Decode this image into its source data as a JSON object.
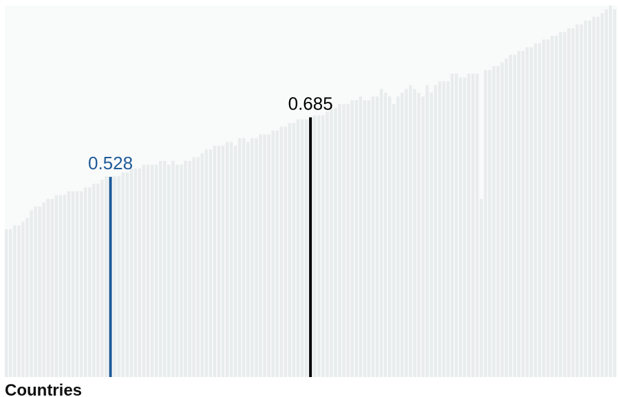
{
  "chart_data": {
    "type": "bar",
    "xlabel": "Countries",
    "ylim": [
      0,
      0.98
    ],
    "highlights": [
      {
        "index": 25,
        "value": 0.528,
        "label": "0.528",
        "color": "#1f5b99"
      },
      {
        "index": 73,
        "value": 0.685,
        "label": "0.685",
        "color": "#000000"
      }
    ],
    "values": [
      0.39,
      0.39,
      0.4,
      0.4,
      0.41,
      0.42,
      0.44,
      0.45,
      0.45,
      0.46,
      0.47,
      0.47,
      0.48,
      0.48,
      0.48,
      0.49,
      0.49,
      0.49,
      0.49,
      0.5,
      0.5,
      0.51,
      0.51,
      0.52,
      0.53,
      0.528,
      0.53,
      0.53,
      0.54,
      0.54,
      0.55,
      0.55,
      0.55,
      0.56,
      0.56,
      0.56,
      0.56,
      0.57,
      0.57,
      0.56,
      0.57,
      0.56,
      0.56,
      0.57,
      0.57,
      0.58,
      0.58,
      0.59,
      0.6,
      0.6,
      0.61,
      0.61,
      0.61,
      0.62,
      0.62,
      0.61,
      0.63,
      0.63,
      0.62,
      0.63,
      0.63,
      0.64,
      0.64,
      0.64,
      0.65,
      0.65,
      0.66,
      0.66,
      0.67,
      0.67,
      0.68,
      0.68,
      0.68,
      0.685,
      0.69,
      0.69,
      0.69,
      0.7,
      0.71,
      0.71,
      0.72,
      0.72,
      0.72,
      0.73,
      0.73,
      0.74,
      0.73,
      0.73,
      0.74,
      0.74,
      0.76,
      0.75,
      0.74,
      0.72,
      0.74,
      0.75,
      0.76,
      0.77,
      0.76,
      0.75,
      0.74,
      0.77,
      0.75,
      0.77,
      0.78,
      0.78,
      0.78,
      0.8,
      0.8,
      0.79,
      0.79,
      0.8,
      0.8,
      0.8,
      0.47,
      0.81,
      0.81,
      0.82,
      0.82,
      0.83,
      0.84,
      0.85,
      0.85,
      0.86,
      0.86,
      0.87,
      0.87,
      0.88,
      0.88,
      0.89,
      0.89,
      0.9,
      0.9,
      0.91,
      0.91,
      0.92,
      0.92,
      0.93,
      0.93,
      0.94,
      0.94,
      0.95,
      0.95,
      0.96,
      0.97,
      0.98,
      0.97
    ]
  }
}
